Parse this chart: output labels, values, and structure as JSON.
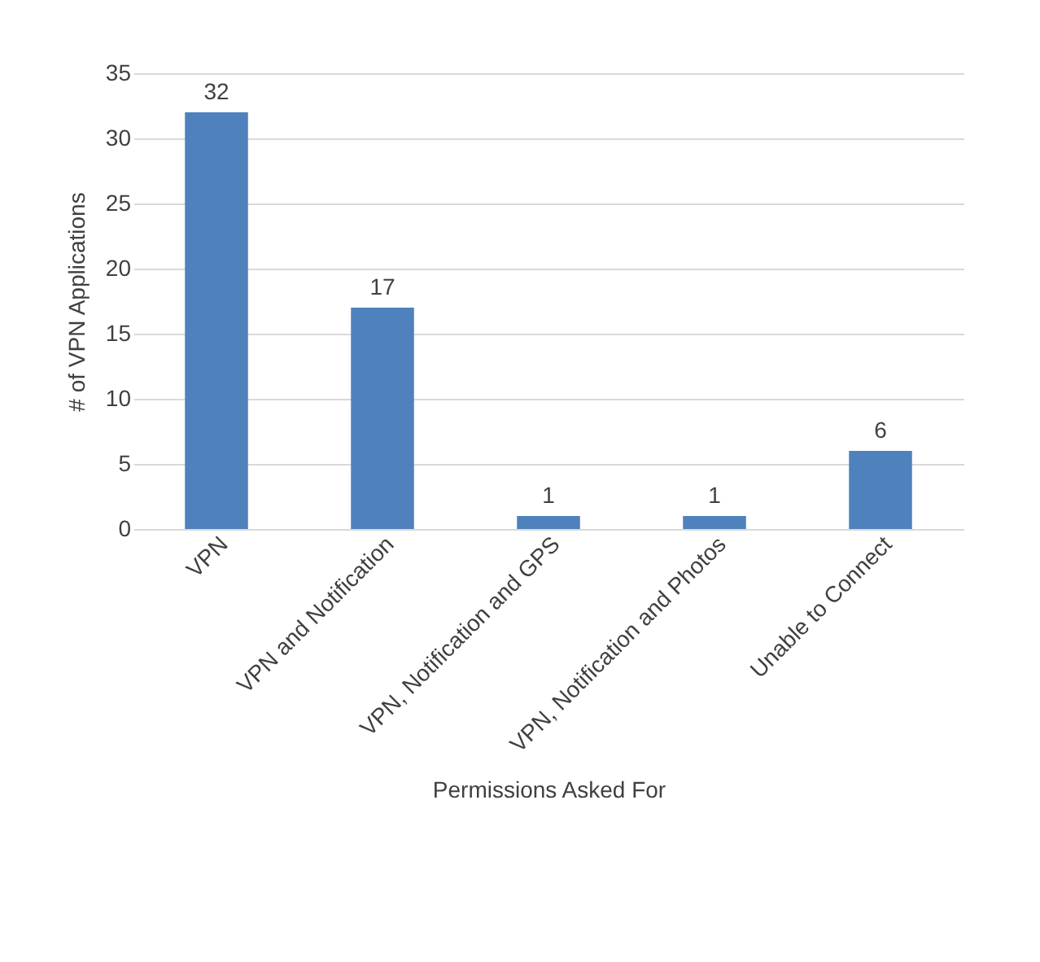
{
  "chart_data": {
    "type": "bar",
    "categories": [
      "VPN",
      "VPN and Notification",
      "VPN, Notification and GPS",
      "VPN, Notification and Photos",
      "Unable to Connect"
    ],
    "values": [
      32,
      17,
      1,
      1,
      6
    ],
    "color": "#4f81bd",
    "xlabel": "Permissions Asked For",
    "ylabel": "# of VPN Applications",
    "ylim": [
      0,
      35
    ],
    "yticks": [
      0,
      5,
      10,
      15,
      20,
      25,
      30,
      35
    ],
    "grid": "y",
    "data_labels": true
  }
}
